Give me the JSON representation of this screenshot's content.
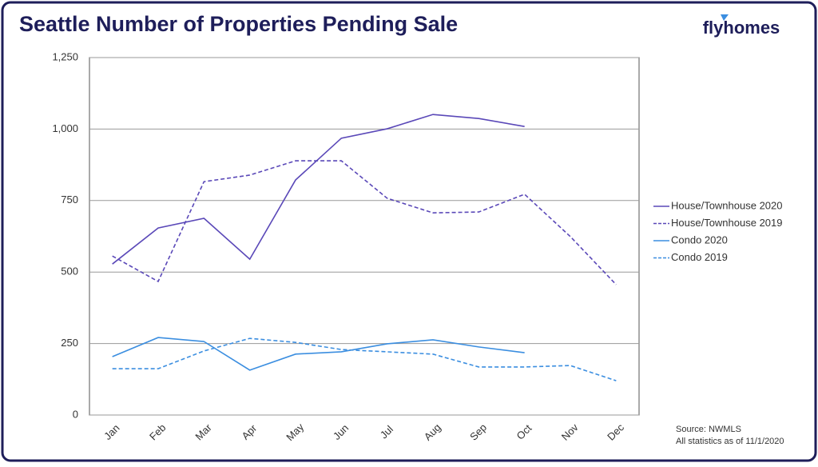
{
  "brand": "flyhomes",
  "chart_data": {
    "type": "line",
    "title": "Seattle Number of Properties Pending Sale",
    "categories": [
      "Jan",
      "Feb",
      "Mar",
      "Apr",
      "May",
      "Jun",
      "Jul",
      "Aug",
      "Sep",
      "Oct",
      "Nov",
      "Dec"
    ],
    "series": [
      {
        "name": "House/Townhouse 2020",
        "color": "#5a48b8",
        "style": "solid",
        "values": [
          528,
          654,
          688,
          545,
          822,
          968,
          1001,
          1051,
          1037,
          1009,
          null,
          null
        ]
      },
      {
        "name": "House/Townhouse 2019",
        "color": "#5a48b8",
        "style": "dashed",
        "values": [
          556,
          467,
          816,
          839,
          889,
          889,
          758,
          707,
          710,
          772,
          624,
          456
        ]
      },
      {
        "name": "Condo 2020",
        "color": "#3b8ee0",
        "style": "solid",
        "values": [
          204,
          271,
          257,
          157,
          213,
          221,
          249,
          263,
          238,
          218,
          null,
          null
        ]
      },
      {
        "name": "Condo 2019",
        "color": "#3b8ee0",
        "style": "dashed",
        "values": [
          162,
          162,
          224,
          268,
          254,
          229,
          221,
          213,
          168,
          168,
          173,
          120
        ]
      }
    ],
    "ylim": [
      0,
      1250
    ],
    "yticks": [
      0,
      250,
      500,
      750,
      {
        "value": 1000,
        "label": "1,000"
      },
      {
        "value": 1250,
        "label": "1,250"
      }
    ],
    "grid": true,
    "legend": "right",
    "source": [
      "Source: NWMLS",
      "All statistics as of 11/1/2020"
    ]
  }
}
